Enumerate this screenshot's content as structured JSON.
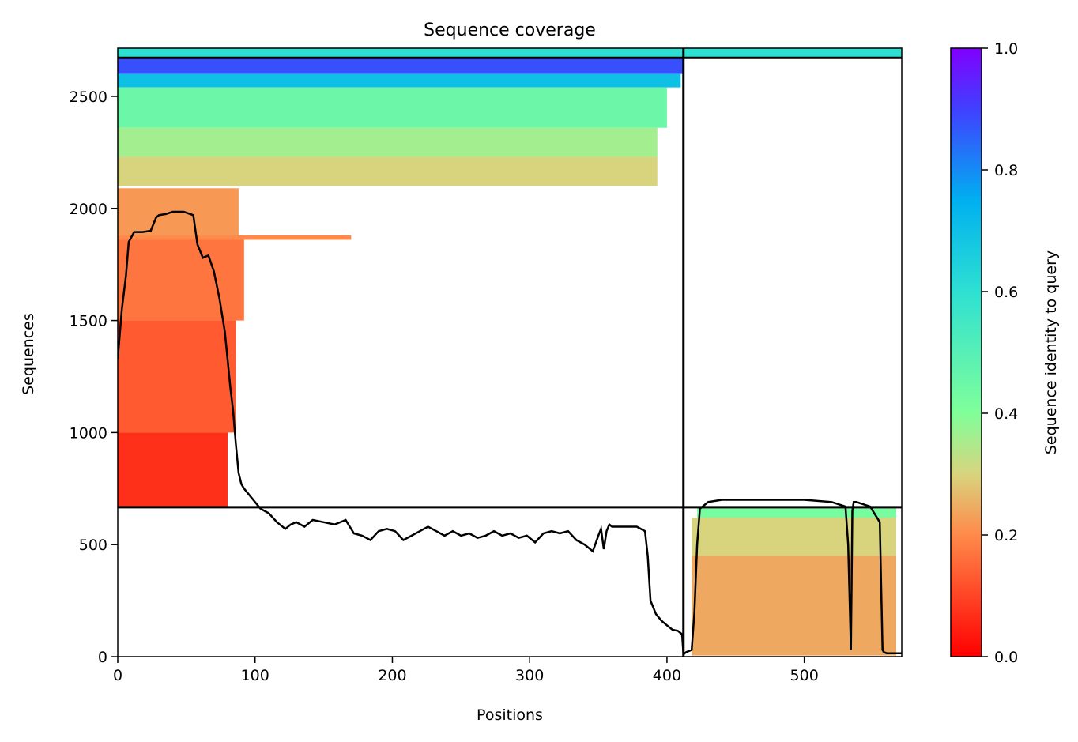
{
  "chart_data": {
    "type": "heatmap",
    "title": "Sequence coverage",
    "xlabel": "Positions",
    "ylabel": "Sequences",
    "xlim": [
      0,
      571
    ],
    "ylim": [
      0,
      2715
    ],
    "x_ticks": [
      "0",
      "100",
      "200",
      "300",
      "400",
      "500"
    ],
    "y_ticks": [
      "0",
      "500",
      "1000",
      "1500",
      "2000",
      "2500"
    ],
    "grid": false,
    "colorbar": {
      "label": "Sequence identity to query",
      "range": [
        0,
        1
      ],
      "ticks": [
        "0.0",
        "0.2",
        "0.4",
        "0.6",
        "0.8",
        "1.0"
      ],
      "colormap": "rainbow",
      "stops": [
        {
          "v": 0.0,
          "color": "#ff0000"
        },
        {
          "v": 0.2,
          "color": "#ff8a4a"
        },
        {
          "v": 0.3,
          "color": "#d8d47e"
        },
        {
          "v": 0.4,
          "color": "#80ff9a"
        },
        {
          "v": 0.6,
          "color": "#2ee0d2"
        },
        {
          "v": 0.75,
          "color": "#00b0f0"
        },
        {
          "v": 0.9,
          "color": "#4040ff"
        },
        {
          "v": 1.0,
          "color": "#8000ff"
        }
      ]
    },
    "chain_boundary_position": 412,
    "row_boundaries": [
      667,
      2672
    ],
    "blocks": [
      {
        "x0": 0,
        "x1": 412,
        "y0": 2672,
        "y1": 2715,
        "identity": 0.6
      },
      {
        "x0": 412,
        "x1": 571,
        "y0": 2672,
        "y1": 2715,
        "identity": 0.6
      },
      {
        "x0": 0,
        "x1": 412,
        "y0": 2600,
        "y1": 2672,
        "identity": 0.88
      },
      {
        "x0": 0,
        "x1": 410,
        "y0": 2540,
        "y1": 2600,
        "identity": 0.7
      },
      {
        "x0": 0,
        "x1": 400,
        "y0": 2360,
        "y1": 2540,
        "identity": 0.45
      },
      {
        "x0": 0,
        "x1": 393,
        "y0": 2230,
        "y1": 2360,
        "identity": 0.36
      },
      {
        "x0": 0,
        "x1": 393,
        "y0": 2100,
        "y1": 2230,
        "identity": 0.3
      },
      {
        "x0": 0,
        "x1": 88,
        "y0": 1880,
        "y1": 2090,
        "identity": 0.22
      },
      {
        "x0": 0,
        "x1": 170,
        "y0": 1860,
        "y1": 1880,
        "identity": 0.2
      },
      {
        "x0": 0,
        "x1": 92,
        "y0": 1500,
        "y1": 1860,
        "identity": 0.17
      },
      {
        "x0": 0,
        "x1": 86,
        "y0": 1000,
        "y1": 1500,
        "identity": 0.13
      },
      {
        "x0": 0,
        "x1": 80,
        "y0": 667,
        "y1": 1000,
        "identity": 0.07
      },
      {
        "x0": 422,
        "x1": 567,
        "y0": 620,
        "y1": 667,
        "identity": 0.42
      },
      {
        "x0": 418,
        "x1": 567,
        "y0": 450,
        "y1": 620,
        "identity": 0.3
      },
      {
        "x0": 418,
        "x1": 567,
        "y0": 5,
        "y1": 450,
        "identity": 0.24
      }
    ],
    "coverage_line": {
      "x": [
        0,
        3,
        6,
        8,
        12,
        18,
        24,
        28,
        30,
        35,
        40,
        48,
        55,
        58,
        62,
        66,
        70,
        74,
        78,
        82,
        84,
        86,
        88,
        90,
        92,
        96,
        100,
        104,
        110,
        116,
        122,
        126,
        130,
        136,
        142,
        150,
        158,
        166,
        172,
        178,
        184,
        190,
        196,
        202,
        208,
        214,
        220,
        226,
        232,
        238,
        244,
        250,
        256,
        262,
        268,
        274,
        280,
        286,
        292,
        298,
        304,
        310,
        316,
        322,
        328,
        334,
        340,
        346,
        350,
        352,
        354,
        356,
        358,
        360,
        366,
        372,
        378,
        384,
        386,
        388,
        392,
        396,
        400,
        404,
        408,
        411,
        412,
        414,
        418,
        420,
        422,
        424,
        430,
        440,
        460,
        480,
        500,
        520,
        530,
        532,
        534,
        535,
        536,
        538,
        548,
        555,
        557,
        558,
        560,
        565,
        571
      ],
      "y": [
        1330,
        1550,
        1700,
        1850,
        1895,
        1895,
        1900,
        1960,
        1970,
        1975,
        1985,
        1985,
        1970,
        1840,
        1780,
        1790,
        1720,
        1600,
        1450,
        1200,
        1100,
        950,
        820,
        770,
        750,
        720,
        690,
        660,
        640,
        600,
        570,
        590,
        600,
        580,
        610,
        600,
        590,
        610,
        550,
        540,
        520,
        560,
        570,
        560,
        520,
        540,
        560,
        580,
        560,
        540,
        560,
        540,
        550,
        530,
        540,
        560,
        540,
        550,
        530,
        540,
        510,
        550,
        560,
        550,
        560,
        520,
        500,
        470,
        540,
        570,
        480,
        560,
        590,
        580,
        580,
        580,
        580,
        560,
        450,
        250,
        190,
        160,
        140,
        120,
        115,
        100,
        10,
        20,
        30,
        200,
        500,
        660,
        690,
        700,
        700,
        700,
        700,
        690,
        670,
        500,
        30,
        650,
        690,
        690,
        670,
        600,
        30,
        20,
        15,
        15,
        15
      ]
    }
  }
}
